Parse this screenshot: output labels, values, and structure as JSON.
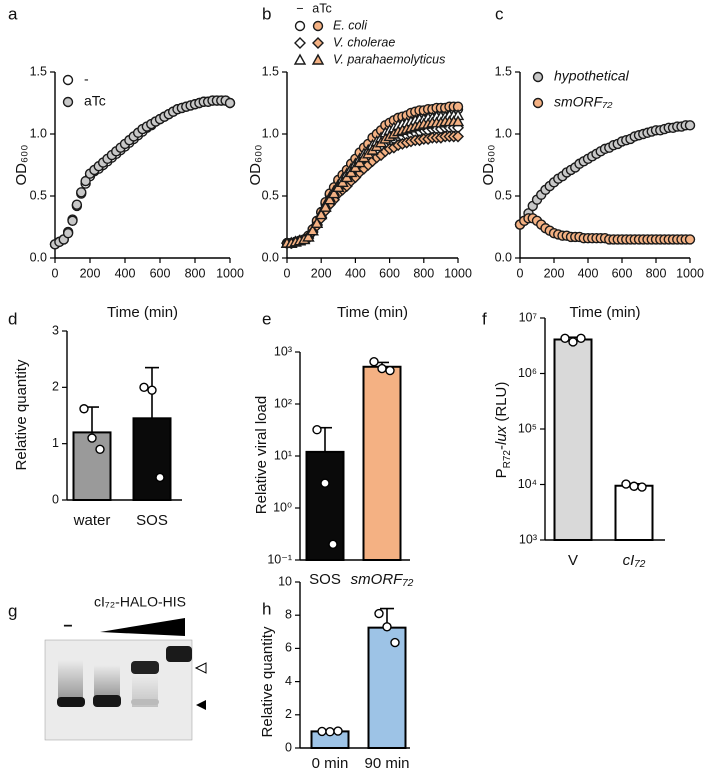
{
  "chart_data": [
    {
      "type": "line",
      "panel": "a",
      "xlabel": "Time (min)",
      "ylabel": "OD₆₀₀",
      "marker": "circle",
      "x": [
        0,
        25,
        50,
        75,
        100,
        125,
        150,
        175,
        200,
        225,
        250,
        275,
        300,
        325,
        350,
        375,
        400,
        425,
        450,
        475,
        500,
        525,
        550,
        575,
        600,
        625,
        650,
        675,
        700,
        725,
        750,
        775,
        800,
        825,
        850,
        875,
        900,
        925,
        950,
        975,
        1000
      ],
      "xlim": [
        0,
        1000
      ],
      "xticks": [
        0,
        200,
        400,
        600,
        800,
        1000
      ],
      "ylim": [
        0,
        1.5
      ],
      "yticks": [
        {
          "value": 0,
          "label": "0.0"
        },
        {
          "value": 0.5,
          "label": "0.5"
        },
        {
          "value": 1,
          "label": "1.0"
        },
        {
          "value": 1.5,
          "label": "1.5"
        }
      ],
      "series": [
        {
          "name": "-",
          "color": "#ffffff",
          "values": [
            0.11,
            0.13,
            0.15,
            0.21,
            0.31,
            0.42,
            0.52,
            0.6,
            0.66,
            0.7,
            0.72,
            0.75,
            0.78,
            0.81,
            0.84,
            0.87,
            0.9,
            0.93,
            0.96,
            0.99,
            1.02,
            1.05,
            1.07,
            1.1,
            1.12,
            1.14,
            1.16,
            1.18,
            1.2,
            1.21,
            1.22,
            1.23,
            1.24,
            1.25,
            1.26,
            1.26,
            1.27,
            1.27,
            1.27,
            1.27,
            1.25
          ]
        },
        {
          "name": "aTc",
          "color": "#c8c8c8",
          "values": [
            0.11,
            0.13,
            0.15,
            0.2,
            0.3,
            0.43,
            0.53,
            0.62,
            0.68,
            0.71,
            0.74,
            0.77,
            0.8,
            0.83,
            0.86,
            0.89,
            0.92,
            0.95,
            0.98,
            1.01,
            1.04,
            1.06,
            1.08,
            1.1,
            1.12,
            1.14,
            1.16,
            1.18,
            1.2,
            1.21,
            1.22,
            1.23,
            1.24,
            1.25,
            1.26,
            1.26,
            1.27,
            1.27,
            1.27,
            1.27,
            1.25
          ]
        }
      ]
    },
    {
      "type": "line",
      "panel": "b",
      "xlabel": "Time (min)",
      "ylabel": "OD₆₀₀",
      "x": [
        0,
        25,
        50,
        75,
        100,
        125,
        150,
        175,
        200,
        225,
        250,
        275,
        300,
        325,
        350,
        375,
        400,
        425,
        450,
        475,
        500,
        525,
        550,
        575,
        600,
        625,
        650,
        675,
        700,
        725,
        750,
        775,
        800,
        825,
        850,
        875,
        900,
        925,
        950,
        975,
        1000
      ],
      "xlim": [
        0,
        1000
      ],
      "xticks": [
        0,
        200,
        400,
        600,
        800,
        1000
      ],
      "ylim": [
        0,
        1.5
      ],
      "yticks": [
        {
          "value": 0,
          "label": "0.0"
        },
        {
          "value": 0.5,
          "label": "0.5"
        },
        {
          "value": 1,
          "label": "1.0"
        },
        {
          "value": 1.5,
          "label": "1.5"
        }
      ],
      "legend_columns": [
        {
          "name": "−",
          "color": "#ffffff"
        },
        {
          "name": "aTc",
          "color": "#f4b183"
        }
      ],
      "series": [
        {
          "name": "E. coli",
          "marker": "circle",
          "values": [
            [
              0.12,
              0.12,
              0.13,
              0.14,
              0.15,
              0.17,
              0.23,
              0.29,
              0.37,
              0.44,
              0.51,
              0.56,
              0.62,
              0.66,
              0.7,
              0.75,
              0.79,
              0.83,
              0.88,
              0.91,
              0.95,
              0.98,
              1.02,
              1.05,
              1.07,
              1.09,
              1.11,
              1.12,
              1.14,
              1.15,
              1.16,
              1.17,
              1.17,
              1.18,
              1.18,
              1.19,
              1.19,
              1.19,
              1.2,
              1.2,
              1.2
            ],
            [
              0.12,
              0.12,
              0.13,
              0.14,
              0.15,
              0.18,
              0.23,
              0.3,
              0.37,
              0.45,
              0.52,
              0.57,
              0.63,
              0.67,
              0.71,
              0.76,
              0.8,
              0.85,
              0.89,
              0.92,
              0.97,
              1.0,
              1.03,
              1.07,
              1.09,
              1.11,
              1.13,
              1.14,
              1.15,
              1.17,
              1.18,
              1.19,
              1.19,
              1.2,
              1.2,
              1.21,
              1.21,
              1.21,
              1.22,
              1.22,
              1.22
            ]
          ]
        },
        {
          "name": "V. cholerae",
          "marker": "diamond",
          "values": [
            [
              0.12,
              0.12,
              0.13,
              0.14,
              0.15,
              0.17,
              0.21,
              0.27,
              0.33,
              0.4,
              0.45,
              0.5,
              0.55,
              0.59,
              0.62,
              0.66,
              0.7,
              0.73,
              0.77,
              0.8,
              0.84,
              0.86,
              0.89,
              0.92,
              0.94,
              0.96,
              0.98,
              0.98,
              0.99,
              1.0,
              1.01,
              1.02,
              1.03,
              1.03,
              1.04,
              1.04,
              1.04,
              1.05,
              1.05,
              1.05,
              1.05
            ],
            [
              0.12,
              0.12,
              0.13,
              0.14,
              0.15,
              0.16,
              0.21,
              0.26,
              0.32,
              0.38,
              0.43,
              0.47,
              0.52,
              0.55,
              0.58,
              0.62,
              0.65,
              0.69,
              0.72,
              0.75,
              0.78,
              0.81,
              0.83,
              0.86,
              0.88,
              0.89,
              0.91,
              0.92,
              0.93,
              0.94,
              0.95,
              0.95,
              0.96,
              0.96,
              0.97,
              0.97,
              0.97,
              0.98,
              0.98,
              0.98,
              0.98
            ]
          ]
        },
        {
          "name": "V. parahaemolyticus",
          "marker": "triangle",
          "values": [
            [
              0.12,
              0.12,
              0.13,
              0.14,
              0.15,
              0.17,
              0.22,
              0.28,
              0.36,
              0.43,
              0.49,
              0.54,
              0.59,
              0.64,
              0.68,
              0.72,
              0.76,
              0.8,
              0.84,
              0.87,
              0.91,
              0.94,
              0.97,
              1.01,
              1.03,
              1.05,
              1.07,
              1.08,
              1.09,
              1.1,
              1.11,
              1.12,
              1.12,
              1.13,
              1.13,
              1.14,
              1.14,
              1.14,
              1.15,
              1.15,
              1.15
            ],
            [
              0.12,
              0.12,
              0.13,
              0.14,
              0.15,
              0.17,
              0.22,
              0.28,
              0.35,
              0.41,
              0.47,
              0.52,
              0.57,
              0.61,
              0.65,
              0.69,
              0.73,
              0.77,
              0.81,
              0.84,
              0.87,
              0.9,
              0.93,
              0.96,
              0.98,
              1.0,
              1.02,
              1.03,
              1.04,
              1.05,
              1.06,
              1.07,
              1.08,
              1.08,
              1.09,
              1.09,
              1.09,
              1.1,
              1.1,
              1.1,
              1.1
            ]
          ]
        }
      ]
    },
    {
      "type": "line",
      "panel": "c",
      "xlabel": "Time (min)",
      "ylabel": "OD₆₀₀",
      "marker": "circle",
      "x": [
        0,
        25,
        50,
        75,
        100,
        125,
        150,
        175,
        200,
        225,
        250,
        275,
        300,
        325,
        350,
        375,
        400,
        425,
        450,
        475,
        500,
        525,
        550,
        575,
        600,
        625,
        650,
        675,
        700,
        725,
        750,
        775,
        800,
        825,
        850,
        875,
        900,
        925,
        950,
        975,
        1000
      ],
      "xlim": [
        0,
        1000
      ],
      "xticks": [
        0,
        200,
        400,
        600,
        800,
        1000
      ],
      "ylim": [
        0,
        1.5
      ],
      "yticks": [
        {
          "value": 0,
          "label": "0.0"
        },
        {
          "value": 0.5,
          "label": "0.5"
        },
        {
          "value": 1,
          "label": "1.0"
        },
        {
          "value": 1.5,
          "label": "1.5"
        }
      ],
      "series": [
        {
          "name": "hypothetical",
          "color": "#c8c8c8",
          "values": [
            0.27,
            0.3,
            0.36,
            0.42,
            0.47,
            0.51,
            0.55,
            0.58,
            0.61,
            0.64,
            0.66,
            0.69,
            0.71,
            0.73,
            0.76,
            0.78,
            0.8,
            0.82,
            0.84,
            0.86,
            0.88,
            0.89,
            0.91,
            0.92,
            0.94,
            0.95,
            0.96,
            0.98,
            0.99,
            1.0,
            1.01,
            1.02,
            1.03,
            1.03,
            1.04,
            1.05,
            1.05,
            1.06,
            1.06,
            1.07,
            1.07
          ]
        },
        {
          "name": "smORF₇₂",
          "color": "#f4b183",
          "values": [
            0.27,
            0.3,
            0.32,
            0.32,
            0.3,
            0.27,
            0.24,
            0.22,
            0.2,
            0.19,
            0.18,
            0.18,
            0.17,
            0.17,
            0.17,
            0.16,
            0.16,
            0.16,
            0.16,
            0.16,
            0.16,
            0.15,
            0.15,
            0.15,
            0.15,
            0.15,
            0.15,
            0.15,
            0.15,
            0.15,
            0.15,
            0.15,
            0.15,
            0.15,
            0.15,
            0.15,
            0.15,
            0.15,
            0.15,
            0.15,
            0.15
          ]
        }
      ]
    },
    {
      "type": "bar",
      "panel": "d",
      "ylabel": "Relative quantity",
      "categories": [
        "water",
        "SOS"
      ],
      "values": [
        1.2,
        1.45
      ],
      "errors": [
        0.45,
        0.9
      ],
      "points": [
        [
          1.62,
          1.1,
          0.9
        ],
        [
          2.0,
          1.95,
          0.4
        ]
      ],
      "colors": [
        "#9a9a9a",
        "#0a0a0a"
      ],
      "ylim": [
        0,
        3
      ],
      "yticks": [
        0,
        1,
        2,
        3
      ]
    },
    {
      "type": "bar",
      "panel": "e",
      "ylabel": "Relative viral load",
      "yscale": "log",
      "categories": [
        "SOS",
        "smORF₇₂"
      ],
      "values": [
        12,
        520
      ],
      "errors": [
        23,
        110
      ],
      "points": [
        [
          32,
          3,
          0.2
        ],
        [
          650,
          480,
          440
        ]
      ],
      "colors": [
        "#0a0a0a",
        "#f4b183"
      ],
      "ylim": [
        0.1,
        1000
      ],
      "yticks": [
        {
          "value": 0.1,
          "label": "10⁻¹"
        },
        {
          "value": 1,
          "label": "10⁰"
        },
        {
          "value": 10,
          "label": "10¹"
        },
        {
          "value": 100,
          "label": "10²"
        },
        {
          "value": 1000,
          "label": "10³"
        }
      ]
    },
    {
      "type": "bar",
      "panel": "f",
      "ylabel": [
        "P",
        "R72",
        "-",
        "lux",
        " (RLU)"
      ],
      "yscale": "log",
      "categories": [
        "V",
        "cI₇₂"
      ],
      "values": [
        4100000,
        9500
      ],
      "errors": [
        400000,
        800
      ],
      "points": [
        [
          4300000,
          3700000,
          4300000
        ],
        [
          10200,
          9300,
          9000
        ]
      ],
      "colors": [
        "#d9d9d9",
        "#ffffff"
      ],
      "ylim": [
        1000,
        10000000
      ],
      "yticks": [
        {
          "value": 1000,
          "label": "10³"
        },
        {
          "value": 10000,
          "label": "10⁴"
        },
        {
          "value": 100000,
          "label": "10⁵"
        },
        {
          "value": 1000000,
          "label": "10⁶"
        },
        {
          "value": 10000000,
          "label": "10⁷"
        }
      ]
    },
    {
      "type": "bar",
      "panel": "h",
      "ylabel": "Relative quantity",
      "categories": [
        "0 min",
        "90 min"
      ],
      "values": [
        1.0,
        7.25
      ],
      "errors": [
        0.05,
        1.15
      ],
      "points": [
        [
          1,
          0.98,
          1.02
        ],
        [
          8.1,
          7.3,
          6.35
        ]
      ],
      "colors": [
        "#9dc3e6",
        "#9dc3e6"
      ],
      "ylim": [
        0,
        10
      ],
      "yticks": [
        0,
        2,
        4,
        6,
        8,
        10
      ]
    }
  ],
  "gel": {
    "panel": "g",
    "label": "cI₇₂-HALO-HIS",
    "blank_lane": "−"
  }
}
